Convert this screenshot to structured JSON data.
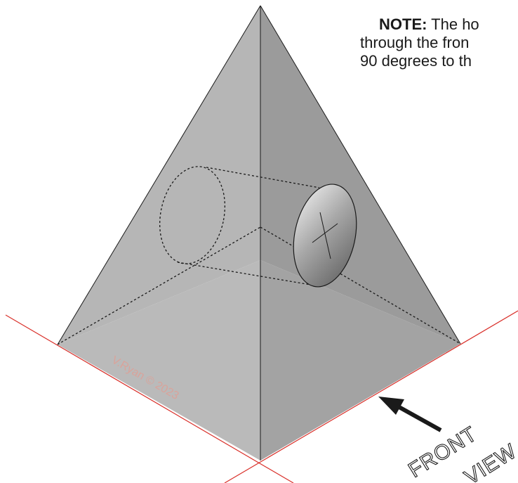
{
  "note": {
    "label": "NOTE:",
    "line1": " The ho",
    "line2": "through the fron",
    "line3": "90 degrees to th"
  },
  "watermark": "V.Ryan © 2023",
  "front_view": {
    "word1": "FRONT",
    "word2": "VIEW"
  },
  "colors": {
    "left_face": "#b5b5b5",
    "right_face": "#9a9a9a",
    "bottom_face": "#b9b9b9",
    "axis_lines": "#d9302a",
    "outline": "#1a1a1a"
  }
}
